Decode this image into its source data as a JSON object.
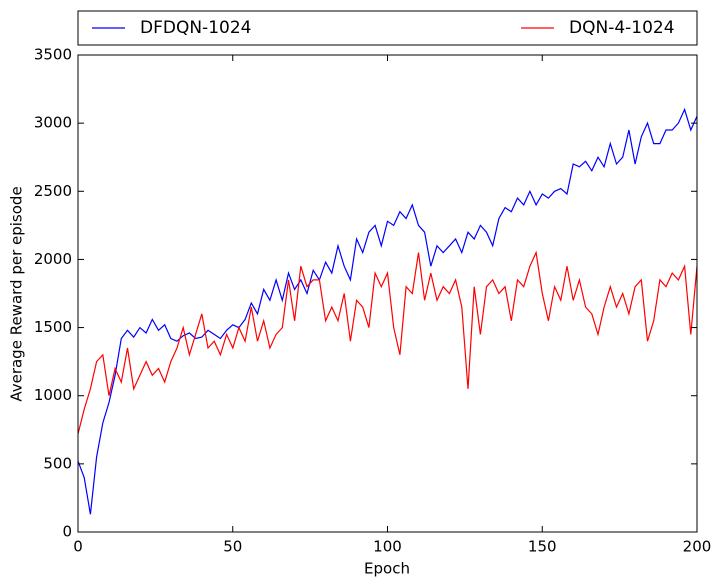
{
  "chart_data": {
    "type": "line",
    "x": [
      0,
      2,
      4,
      6,
      8,
      10,
      12,
      14,
      16,
      18,
      20,
      22,
      24,
      26,
      28,
      30,
      32,
      34,
      36,
      38,
      40,
      42,
      44,
      46,
      48,
      50,
      52,
      54,
      56,
      58,
      60,
      62,
      64,
      66,
      68,
      70,
      72,
      74,
      76,
      78,
      80,
      82,
      84,
      86,
      88,
      90,
      92,
      94,
      96,
      98,
      100,
      102,
      104,
      106,
      108,
      110,
      112,
      114,
      116,
      118,
      120,
      122,
      124,
      126,
      128,
      130,
      132,
      134,
      136,
      138,
      140,
      142,
      144,
      146,
      148,
      150,
      152,
      154,
      156,
      158,
      160,
      162,
      164,
      166,
      168,
      170,
      172,
      174,
      176,
      178,
      180,
      182,
      184,
      186,
      188,
      190,
      192,
      194,
      196,
      198,
      200
    ],
    "series": [
      {
        "name": "DFDQN-1024",
        "color": "#0000ff",
        "values": [
          520,
          400,
          130,
          550,
          800,
          950,
          1150,
          1420,
          1480,
          1430,
          1500,
          1460,
          1560,
          1480,
          1520,
          1420,
          1400,
          1440,
          1460,
          1420,
          1430,
          1480,
          1450,
          1420,
          1480,
          1520,
          1500,
          1560,
          1680,
          1600,
          1780,
          1700,
          1850,
          1700,
          1900,
          1780,
          1850,
          1750,
          1920,
          1850,
          1980,
          1900,
          2100,
          1950,
          1850,
          2150,
          2050,
          2200,
          2250,
          2100,
          2280,
          2250,
          2350,
          2300,
          2400,
          2250,
          2200,
          1950,
          2100,
          2050,
          2100,
          2150,
          2050,
          2200,
          2150,
          2250,
          2200,
          2100,
          2300,
          2380,
          2350,
          2450,
          2400,
          2500,
          2400,
          2480,
          2450,
          2500,
          2520,
          2480,
          2700,
          2680,
          2720,
          2650,
          2750,
          2680,
          2850,
          2700,
          2750,
          2950,
          2700,
          2900,
          3000,
          2850,
          2850,
          2950,
          2950,
          3000,
          3100,
          2950,
          3050
        ]
      },
      {
        "name": "DQN-4-1024",
        "color": "#ff0000",
        "values": [
          720,
          900,
          1050,
          1250,
          1300,
          1000,
          1200,
          1100,
          1350,
          1050,
          1150,
          1250,
          1150,
          1200,
          1100,
          1250,
          1350,
          1500,
          1300,
          1450,
          1600,
          1350,
          1400,
          1300,
          1450,
          1350,
          1500,
          1400,
          1650,
          1400,
          1550,
          1350,
          1450,
          1500,
          1850,
          1550,
          1950,
          1800,
          1850,
          1850,
          1550,
          1650,
          1550,
          1750,
          1400,
          1700,
          1650,
          1500,
          1900,
          1800,
          1900,
          1500,
          1300,
          1800,
          1750,
          2050,
          1700,
          1900,
          1700,
          1800,
          1750,
          1850,
          1650,
          1050,
          1800,
          1450,
          1800,
          1850,
          1750,
          1800,
          1550,
          1850,
          1800,
          1950,
          2050,
          1750,
          1550,
          1800,
          1700,
          1950,
          1700,
          1850,
          1650,
          1600,
          1450,
          1650,
          1800,
          1650,
          1750,
          1600,
          1800,
          1850,
          1400,
          1550,
          1850,
          1800,
          1900,
          1850,
          1950,
          1450,
          1950
        ]
      }
    ],
    "xlabel": "Epoch",
    "ylabel": "Average Reward per episode",
    "xlim": [
      0,
      200
    ],
    "xticks": [
      0,
      50,
      100,
      150,
      200
    ],
    "ylim": [
      0,
      3500
    ],
    "yticks": [
      0,
      500,
      1000,
      1500,
      2000,
      2500,
      3000,
      3500
    ],
    "grid": false,
    "legend": "top"
  }
}
